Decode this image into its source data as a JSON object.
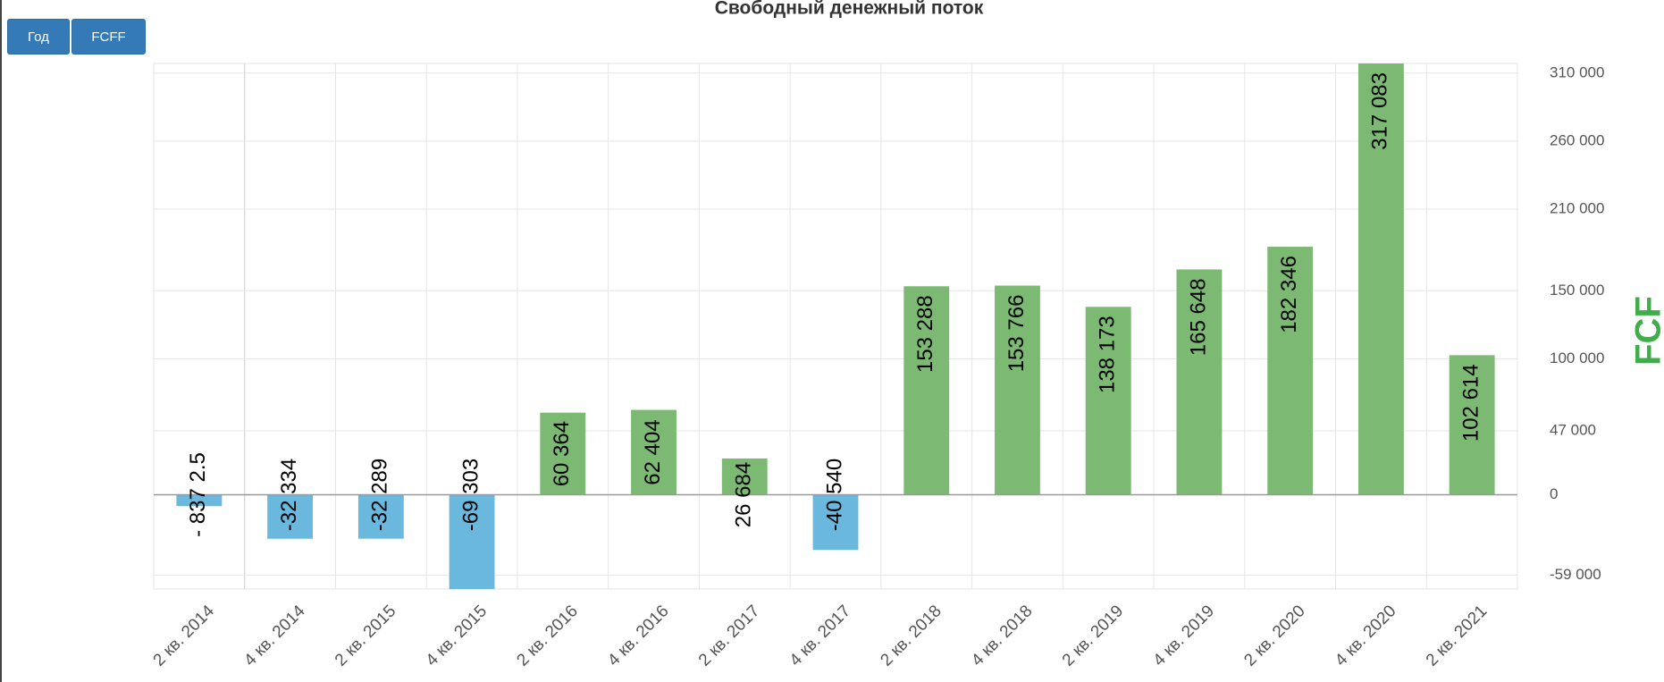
{
  "chart_data": {
    "type": "bar",
    "title": "Свободный денежный поток",
    "buttons": [
      "Год",
      "FCFF"
    ],
    "y_axis_title": "FCF",
    "categories": [
      "2 кв. 2014",
      "4 кв. 2014",
      "2 кв. 2015",
      "4 кв. 2015",
      "2 кв. 2016",
      "4 кв. 2016",
      "2 кв. 2017",
      "4 кв. 2017",
      "2 кв. 2018",
      "4 кв. 2018",
      "2 кв. 2019",
      "4 кв. 2019",
      "2 кв. 2020",
      "4 кв. 2020",
      "2 кв. 2021"
    ],
    "values": [
      -8372.5,
      -32334,
      -32289,
      -69303,
      60364,
      62404,
      26684,
      -40540,
      153288,
      153766,
      138173,
      165648,
      182346,
      317083,
      102614
    ],
    "value_labels": [
      "- 837 2.5",
      "-32 334",
      "-32 289",
      "-69 303",
      "60 364",
      "62 404",
      "26 684",
      "-40 540",
      "153 288",
      "153 766",
      "138 173",
      "165 648",
      "182 346",
      "317 083",
      "102 614"
    ],
    "positive_color": "#7cb973",
    "negative_color": "#6bb8de",
    "title_color": "#3fae49",
    "ylim": [
      -69303,
      317083
    ],
    "yticks": [
      {
        "value": -59000,
        "label": "-59 000"
      },
      0,
      {
        "value": 47000,
        "label": "47 000"
      },
      {
        "value": 100000,
        "label": "100 000"
      },
      {
        "value": 150000,
        "label": "150 000"
      },
      {
        "value": 210000,
        "label": "210 000"
      },
      {
        "value": 260000,
        "label": "260 000"
      },
      {
        "value": 310000,
        "label": "310 000"
      }
    ],
    "grid": true
  }
}
